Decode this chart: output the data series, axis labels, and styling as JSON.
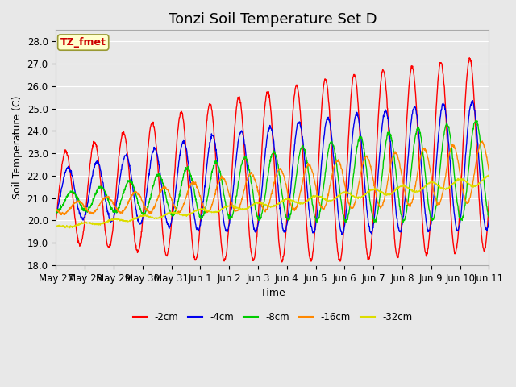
{
  "title": "Tonzi Soil Temperature Set D",
  "xlabel": "Time",
  "ylabel": "Soil Temperature (C)",
  "ylim": [
    18.0,
    28.5
  ],
  "yticks": [
    18.0,
    19.0,
    20.0,
    21.0,
    22.0,
    23.0,
    24.0,
    25.0,
    26.0,
    27.0,
    28.0
  ],
  "line_colors": [
    "#ff0000",
    "#0000ee",
    "#00cc00",
    "#ff8800",
    "#dddd00"
  ],
  "line_labels": [
    "-2cm",
    "-4cm",
    "-8cm",
    "-16cm",
    "-32cm"
  ],
  "legend_label_box": "TZ_fmet",
  "legend_box_bg": "#ffffcc",
  "legend_box_border": "#999933",
  "background_color": "#e8e8e8",
  "grid_color": "#ffffff",
  "title_fontsize": 13,
  "axis_fontsize": 9,
  "tick_fontsize": 8.5,
  "tick_labels_x": [
    "May 27",
    "May 28",
    "May 29",
    "May 30",
    "May 31",
    "Jun 1",
    "Jun 2",
    "Jun 3",
    "Jun 4",
    "Jun 5",
    "Jun 6",
    "Jun 7",
    "Jun 8",
    "Jun 9",
    "Jun 10",
    "Jun 11"
  ],
  "tick_positions_x": [
    0,
    1,
    2,
    3,
    4,
    5,
    6,
    7,
    8,
    9,
    10,
    11,
    12,
    13,
    14,
    15
  ]
}
